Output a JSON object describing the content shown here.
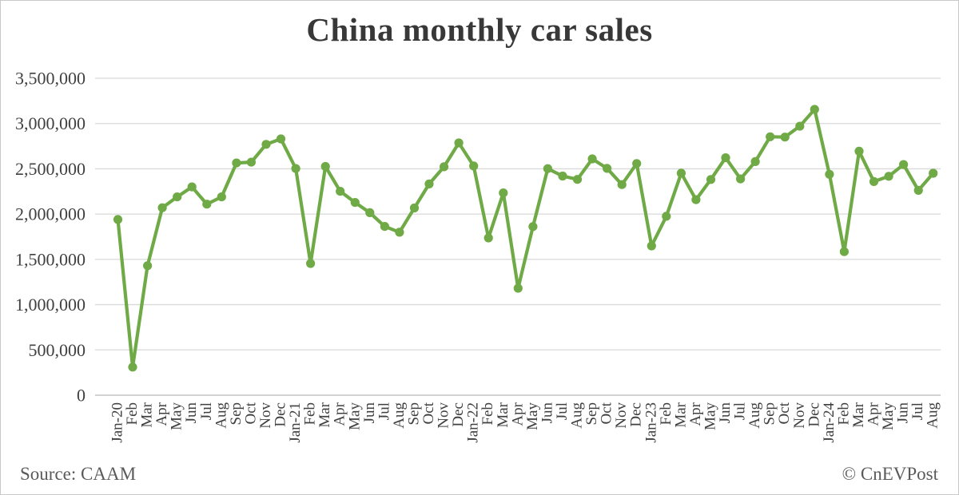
{
  "footer": {
    "source": "Source: CAAM",
    "credit": "© CnEVPost"
  },
  "chart_data": {
    "type": "line",
    "title": "China monthly car sales",
    "categories": [
      "Jan-20",
      "Feb",
      "Mar",
      "Apr",
      "May",
      "Jun",
      "Jul",
      "Aug",
      "Sep",
      "Oct",
      "Nov",
      "Dec",
      "Jan-21",
      "Feb",
      "Mar",
      "Apr",
      "May",
      "Jun",
      "Jul",
      "Aug",
      "Sep",
      "Oct",
      "Nov",
      "Dec",
      "Jan-22",
      "Feb",
      "Mar",
      "Apr",
      "May",
      "Jun",
      "Jul",
      "Aug",
      "Sep",
      "Oct",
      "Nov",
      "Dec",
      "Jan-23",
      "Feb",
      "Mar",
      "Apr",
      "May",
      "Jun",
      "Jul",
      "Aug",
      "Sep",
      "Oct",
      "Nov",
      "Dec",
      "Jan-24",
      "Feb",
      "Mar",
      "Apr",
      "May",
      "Jun",
      "Jul",
      "Aug"
    ],
    "series": [
      {
        "name": "Monthly car sales",
        "values": [
          1940000,
          310000,
          1430000,
          2070000,
          2190000,
          2300000,
          2110000,
          2190000,
          2565000,
          2573000,
          2770000,
          2830000,
          2503000,
          1455000,
          2526000,
          2252000,
          2128000,
          2015000,
          1864000,
          1799000,
          2067000,
          2333000,
          2522000,
          2786000,
          2531000,
          1737000,
          2234000,
          1181000,
          1862000,
          2502000,
          2420000,
          2383000,
          2610000,
          2505000,
          2326000,
          2558000,
          1649000,
          1976000,
          2452000,
          2159000,
          2382000,
          2622000,
          2388000,
          2580000,
          2854000,
          2850000,
          2970000,
          3156000,
          2439000,
          1585000,
          2694000,
          2359000,
          2417000,
          2547000,
          2262000,
          2451000
        ]
      }
    ],
    "xlabel": "",
    "ylabel": "",
    "ylim": [
      0,
      3500000
    ],
    "y_ticks": [
      0,
      500000,
      1000000,
      1500000,
      2000000,
      2500000,
      3000000,
      3500000
    ],
    "grid": "horizontal",
    "legend": "none",
    "line_color": "#6faa47",
    "marker": "circle",
    "gridline_color": "#d9d9d9",
    "axis_line_color": "#b8b8b8",
    "tick_label_color": "#404040"
  }
}
